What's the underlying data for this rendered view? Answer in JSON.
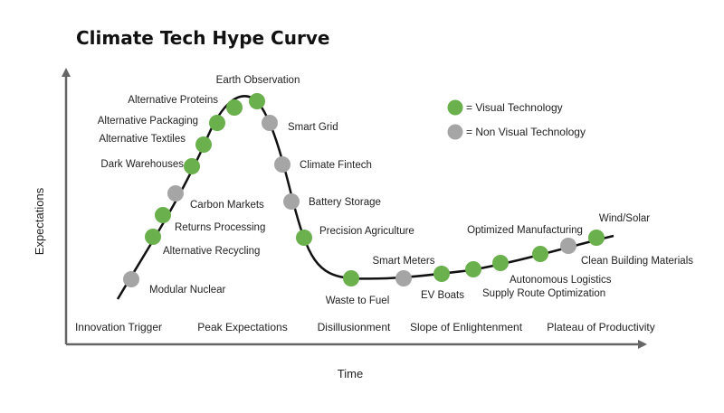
{
  "title": "Climate Tech Hype Curve",
  "axes": {
    "x_label": "Time",
    "y_label": "Expectations"
  },
  "legend": {
    "visual": "= Visual Technology",
    "non_visual": "= Non Visual Technology"
  },
  "colors": {
    "visual": "#6ab04c",
    "non_visual": "#a5a5a5",
    "curve": "#111111",
    "axis": "#666666"
  },
  "stages": [
    "Innovation Trigger",
    "Peak Expectations",
    "Disillusionment",
    "Slope of Enlightenment",
    "Plateau of Productivity"
  ],
  "technologies": [
    {
      "name": "Modular Nuclear",
      "kind": "non_visual"
    },
    {
      "name": "Alternative Recycling",
      "kind": "visual"
    },
    {
      "name": "Returns Processing",
      "kind": "visual"
    },
    {
      "name": "Carbon Markets",
      "kind": "non_visual"
    },
    {
      "name": "Dark Warehouses",
      "kind": "visual"
    },
    {
      "name": "Alternative Textiles",
      "kind": "visual"
    },
    {
      "name": "Alternative Packaging",
      "kind": "visual"
    },
    {
      "name": "Alternative Proteins",
      "kind": "visual"
    },
    {
      "name": "Earth Observation",
      "kind": "visual"
    },
    {
      "name": "Smart Grid",
      "kind": "non_visual"
    },
    {
      "name": "Climate Fintech",
      "kind": "non_visual"
    },
    {
      "name": "Battery Storage",
      "kind": "non_visual"
    },
    {
      "name": "Precision Agriculture",
      "kind": "visual"
    },
    {
      "name": "Waste to Fuel",
      "kind": "visual"
    },
    {
      "name": "Smart Meters",
      "kind": "non_visual"
    },
    {
      "name": "EV Boats",
      "kind": "visual"
    },
    {
      "name": "Supply Route Optimization",
      "kind": "visual"
    },
    {
      "name": "Autonomous Logistics",
      "kind": "visual"
    },
    {
      "name": "Optimized Manufacturing",
      "kind": "visual"
    },
    {
      "name": "Clean Building Materials",
      "kind": "non_visual"
    },
    {
      "name": "Wind/Solar",
      "kind": "visual"
    }
  ]
}
